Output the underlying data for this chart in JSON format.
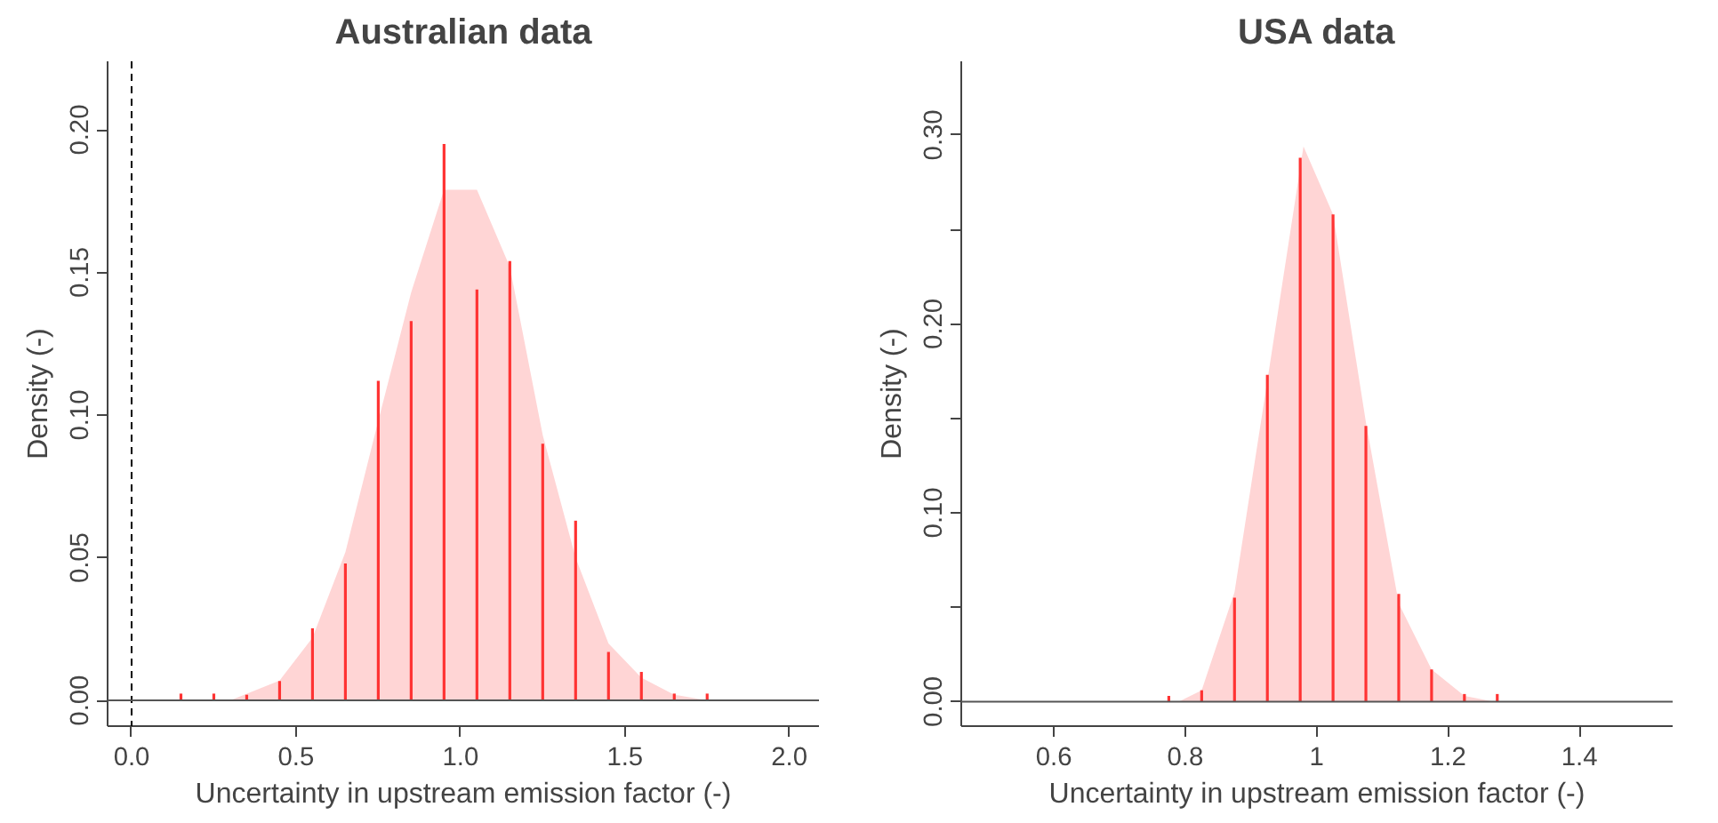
{
  "chart_data": [
    {
      "type": "area",
      "title": "Australian data",
      "xlabel": "Uncertainty in upstream emission factor (-)",
      "ylabel": "Density (-)",
      "xlim": [
        -0.073,
        2.09
      ],
      "ylim": [
        -0.009,
        0.224
      ],
      "xticks": [
        {
          "value": 0.0,
          "label": "0.0"
        },
        0.5,
        {
          "value": 1.0,
          "label": "1.0"
        },
        1.5,
        {
          "value": 2.0,
          "label": "2.0"
        }
      ],
      "yticks": [
        {
          "value": 0.0,
          "label": "0.00"
        },
        0.05,
        {
          "value": 0.1,
          "label": "0.10"
        },
        0.15,
        {
          "value": 0.2,
          "label": "0.20"
        }
      ],
      "grid": false,
      "ref_lines": [
        {
          "axis": "x",
          "value": 0,
          "line_style": "dashed",
          "color": "#000000"
        },
        {
          "axis": "y",
          "value": 0,
          "line_style": "solid",
          "color": "#555555"
        }
      ],
      "series": [
        {
          "color": "#ffd5d5",
          "x": [
            0.3,
            0.45,
            0.55,
            0.65,
            0.75,
            0.85,
            0.95,
            1.05,
            1.15,
            1.25,
            1.35,
            1.45,
            1.55,
            1.65,
            1.75
          ],
          "values": [
            0,
            0.007,
            0.022,
            0.052,
            0.098,
            0.143,
            0.179,
            0.179,
            0.152,
            0.093,
            0.05,
            0.02,
            0.008,
            0.002,
            0
          ]
        },
        {
          "type": "bar",
          "color": "#ff3333",
          "x": [
            0.15,
            0.25,
            0.35,
            0.45,
            0.55,
            0.65,
            0.75,
            0.85,
            0.95,
            1.05,
            1.15,
            1.25,
            1.35,
            1.45,
            1.55,
            1.65,
            1.75
          ],
          "values": [
            0.0024,
            0.0024,
            0.002,
            0.0068,
            0.0253,
            0.048,
            0.112,
            0.133,
            0.195,
            0.144,
            0.154,
            0.09,
            0.063,
            0.017,
            0.01,
            0.0024,
            0.0024
          ]
        }
      ]
    },
    {
      "type": "area",
      "title": "USA data",
      "xlabel": "Uncertainty in upstream emission factor (-)",
      "ylabel": "Density (-)",
      "xlim": [
        0.459,
        1.542
      ],
      "ylim": [
        -0.013,
        0.339
      ],
      "xticks": [
        0.6,
        0.8,
        1.0,
        1.2,
        1.4
      ],
      "yticks": [
        {
          "value": 0.0,
          "label": "0.00"
        },
        {
          "value": 0.05,
          "label": null
        },
        {
          "value": 0.1,
          "label": "0.10"
        },
        {
          "value": 0.15,
          "label": null
        },
        {
          "value": 0.2,
          "label": "0.20"
        },
        {
          "value": 0.25,
          "label": null
        },
        {
          "value": 0.3,
          "label": "0.30"
        }
      ],
      "grid": false,
      "ref_lines": [
        {
          "axis": "y",
          "value": 0,
          "line_style": "solid",
          "color": "#555555"
        }
      ],
      "series": [
        {
          "color": "#ffd5d5",
          "x": [
            0.79,
            0.825,
            0.875,
            0.925,
            0.98,
            1.025,
            1.075,
            1.125,
            1.175,
            1.225,
            1.27
          ],
          "values": [
            0,
            0.006,
            0.058,
            0.17,
            0.294,
            0.258,
            0.148,
            0.052,
            0.017,
            0.003,
            0
          ]
        },
        {
          "type": "bar",
          "color": "#ff3333",
          "x": [
            0.775,
            0.825,
            0.875,
            0.925,
            0.975,
            1.025,
            1.075,
            1.125,
            1.175,
            1.225,
            1.275
          ],
          "values": [
            0.003,
            0.006,
            0.055,
            0.173,
            0.288,
            0.258,
            0.146,
            0.057,
            0.017,
            0.004,
            0.004
          ]
        }
      ]
    }
  ]
}
